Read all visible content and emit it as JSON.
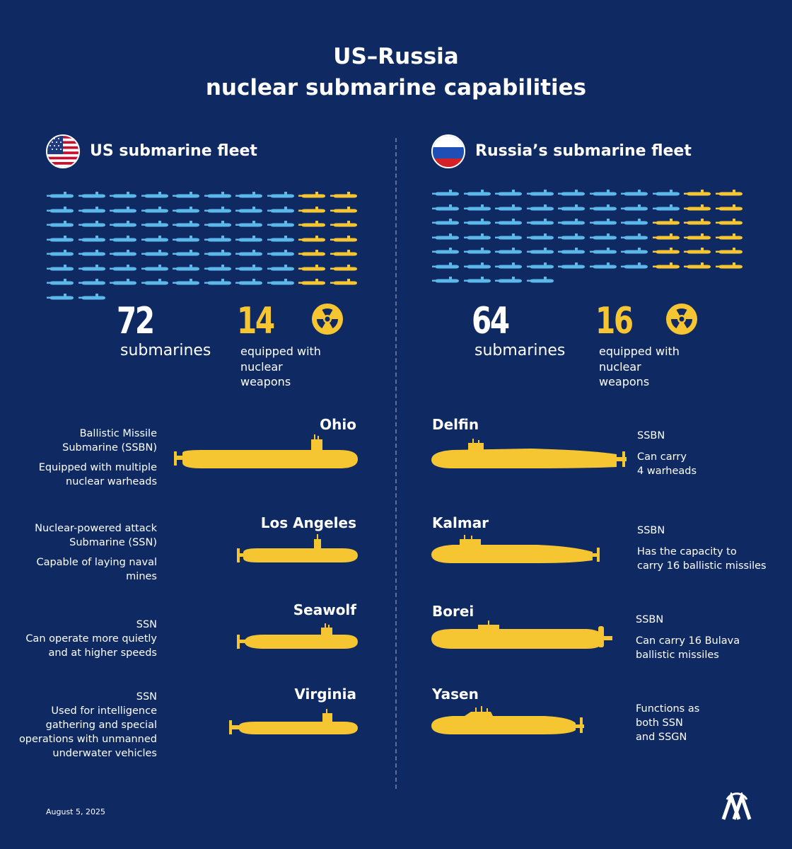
{
  "title_line1": "US–Russia",
  "title_line2": "nuclear submarine capabilities",
  "us": {
    "fleet_title": "US submarine fleet",
    "total": "72",
    "total_label": "submarines",
    "nuclear": "14",
    "nuclear_label": [
      "equipped with",
      "nuclear",
      "weapons"
    ],
    "grid": {
      "total": 72,
      "nuclear": 14
    },
    "subs": [
      {
        "name": "Ohio",
        "desc": [
          "Ballistic Missile Submarine (SSBN)",
          "Equipped with multiple nuclear warheads"
        ]
      },
      {
        "name": "Los Angeles",
        "desc": [
          "Nuclear-powered attack Submarine (SSN)",
          "Capable of laying naval mines"
        ]
      },
      {
        "name": "Seawolf",
        "desc": [
          "SSN",
          "Can operate more quietly and at higher speeds"
        ]
      },
      {
        "name": "Virginia",
        "desc": [
          "SSN",
          "Used for intelligence gathering and special operations with unmanned underwater vehicles"
        ]
      }
    ]
  },
  "russia": {
    "fleet_title": "Russia’s submarine fleet",
    "total": "64",
    "total_label": "submarines",
    "nuclear": "16",
    "nuclear_label": [
      "equipped with",
      "nuclear",
      "weapons"
    ],
    "grid": {
      "total": 64,
      "nuclear": 16
    },
    "subs": [
      {
        "name": "Delfin",
        "desc": [
          "SSBN",
          "Can carry",
          "4 warheads"
        ]
      },
      {
        "name": "Kalmar",
        "desc": [
          "SSBN",
          "Has the capacity to",
          "carry 16 ballistic missiles"
        ]
      },
      {
        "name": "Borei",
        "desc": [
          "SSBN",
          "Can carry 16 Bulava",
          "ballistic missiles"
        ]
      },
      {
        "name": "Yasen",
        "desc": [
          "Functions as",
          "both SSN",
          "and SSGN"
        ]
      }
    ]
  },
  "icons": {
    "nuclear": "radiation-icon",
    "logo": "aa-logo"
  },
  "colors": {
    "background": "#0f2a62",
    "conventional": "#5bb8e8",
    "nuclear": "#f6c632",
    "text": "#ffffff"
  },
  "date": "August 5, 2025"
}
